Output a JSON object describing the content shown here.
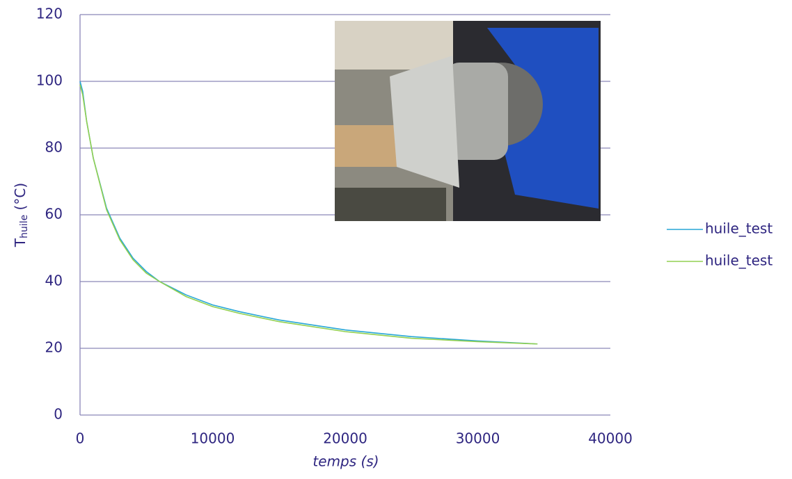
{
  "chart_data": {
    "type": "line",
    "x_label": "temps (s)",
    "y_label": "T",
    "y_label_subscript": "huile",
    "y_label_suffix": " (°C)",
    "xlim": [
      0,
      40000
    ],
    "xticks": [
      0,
      10000,
      20000,
      30000,
      40000
    ],
    "ylim": [
      0,
      120
    ],
    "yticks": [
      0,
      20,
      40,
      60,
      80,
      100,
      120
    ],
    "grid": true,
    "legend": "right",
    "series": [
      {
        "name": "huile_test",
        "color": "#27a6d6",
        "x": [
          0,
          200,
          500,
          1000,
          2000,
          3000,
          4000,
          5000,
          6000,
          8000,
          10000,
          12000,
          15000,
          20000,
          25000,
          30000,
          34500
        ],
        "values": [
          100,
          97,
          88,
          77,
          62,
          53,
          47,
          43,
          40,
          36,
          33,
          31,
          28.5,
          25.5,
          23.5,
          22.2,
          21.3
        ]
      },
      {
        "name": "huile_test",
        "color": "#92d050",
        "x": [
          0,
          200,
          500,
          1000,
          2000,
          3000,
          4000,
          5000,
          6000,
          8000,
          10000,
          12000,
          15000,
          20000,
          25000,
          30000,
          34500
        ],
        "values": [
          99,
          96,
          88,
          77,
          61.5,
          52.5,
          46.5,
          42.5,
          40,
          35.5,
          32.5,
          30.5,
          28,
          25,
          23,
          22,
          21.3
        ]
      }
    ]
  }
}
